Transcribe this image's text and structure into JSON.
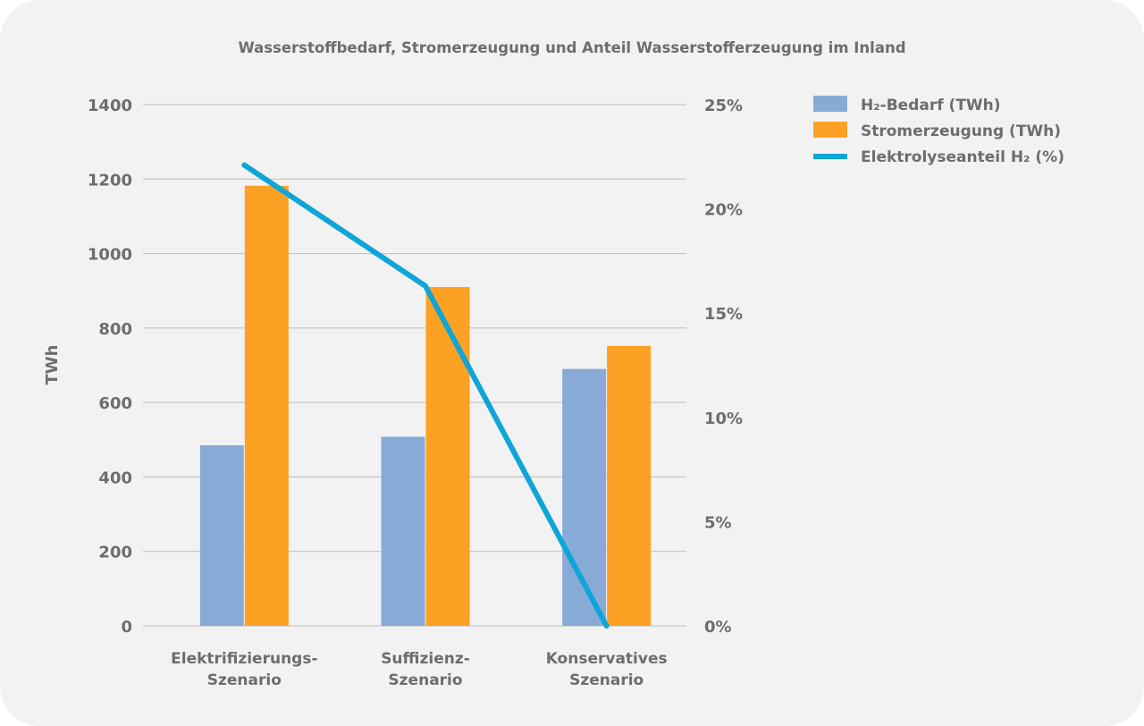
{
  "chart_data": {
    "type": "bar",
    "title": "Wasserstoffbedarf, Stromerzeugung und Anteil Wasserstofferzeugung im Inland",
    "ylabel": "TWh",
    "ylim": [
      0,
      1400
    ],
    "yticks": [
      "0",
      "200",
      "400",
      "600",
      "800",
      "1000",
      "1200",
      "1400"
    ],
    "y2lim": [
      0,
      25
    ],
    "y2ticks": [
      "0%",
      "5%",
      "10%",
      "15%",
      "20%",
      "25%"
    ],
    "categories": [
      [
        "Elektrifizierungs-",
        "Szenario"
      ],
      [
        "Suffizienz-",
        "Szenario"
      ],
      [
        "Konservatives",
        "Szenario"
      ]
    ],
    "series": [
      {
        "name": "H₂-Bedarf (TWh)",
        "type": "bar",
        "axis": "left",
        "color": "#87abd6",
        "values": [
          485,
          508,
          690
        ]
      },
      {
        "name": "Stromerzeugung (TWh)",
        "type": "bar",
        "axis": "left",
        "color": "#fca124",
        "values": [
          1182,
          910,
          752
        ]
      },
      {
        "name": "Elektrolyseanteil H₂ (%)",
        "type": "line",
        "axis": "right",
        "color": "#0ea5d8",
        "values": [
          22.1,
          16.3,
          0
        ]
      }
    ],
    "grid": true,
    "legend": "top-right"
  }
}
